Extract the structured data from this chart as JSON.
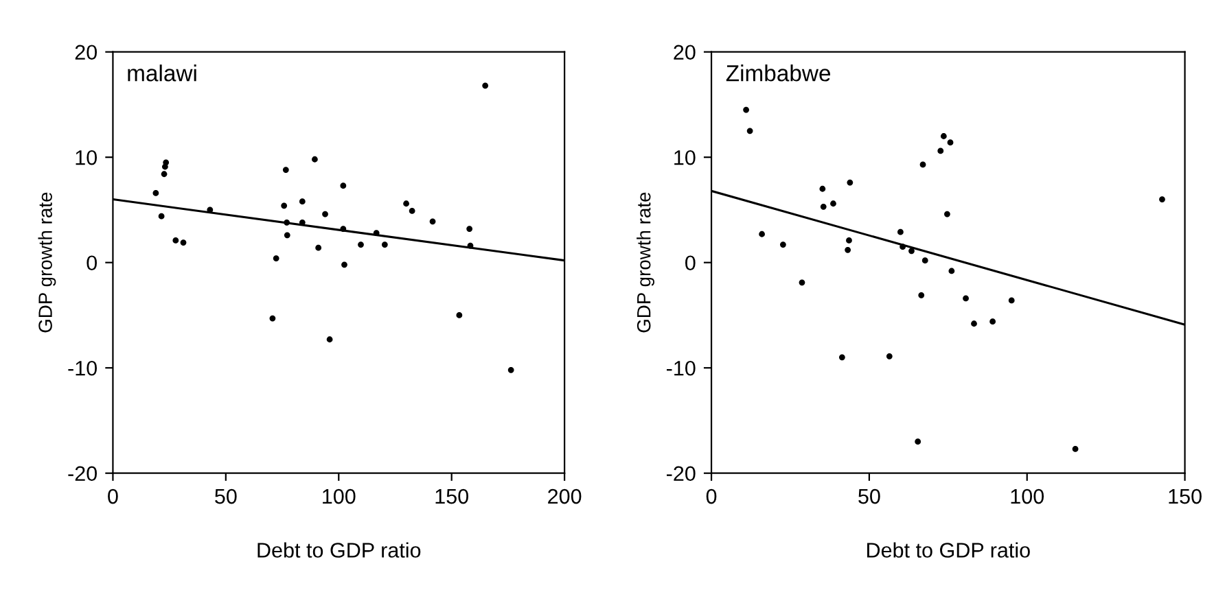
{
  "chart_data": [
    {
      "type": "scatter",
      "title": "malawi",
      "xlabel": "Debt to GDP ratio",
      "ylabel": "GDP growth rate",
      "xlim": [
        0,
        200
      ],
      "ylim": [
        -20,
        20
      ],
      "xticks": [
        0,
        50,
        100,
        150,
        200
      ],
      "yticks": [
        -20,
        -10,
        0,
        10,
        20
      ],
      "grid": false,
      "legend": false,
      "series": [
        {
          "color": "#000000",
          "marker": "circle",
          "x": [
            19,
            21.5,
            22.7,
            23.1,
            23.5,
            27.8,
            31.2,
            43,
            70.7,
            72.3,
            75.8,
            76.6,
            77,
            77.2,
            83.9,
            83.9,
            89.4,
            91,
            94,
            96,
            102,
            102,
            102.5,
            109.8,
            116.7,
            120.4,
            129.9,
            132.5,
            141.6,
            153.4,
            157.9,
            158.3,
            164.9,
            176.3
          ],
          "values": [
            6.6,
            4.4,
            8.4,
            9.1,
            9.5,
            2.1,
            1.9,
            5.0,
            -5.3,
            0.4,
            5.4,
            8.8,
            3.8,
            2.6,
            5.8,
            3.8,
            9.8,
            1.4,
            4.6,
            -7.3,
            7.3,
            3.2,
            -0.2,
            1.7,
            2.8,
            1.7,
            5.6,
            4.9,
            3.9,
            -5.0,
            3.2,
            1.6,
            16.8,
            -10.2
          ]
        },
        {
          "type": "line",
          "color": "#000000",
          "x": [
            0,
            200
          ],
          "values": [
            6.0,
            0.2
          ]
        }
      ]
    },
    {
      "type": "scatter",
      "title": "Zimbabwe",
      "xlabel": "Debt to GDP ratio",
      "ylabel": "GDP growth rate",
      "xlim": [
        0,
        150
      ],
      "ylim": [
        -20,
        20
      ],
      "xticks": [
        0,
        50,
        100,
        150
      ],
      "yticks": [
        -20,
        -10,
        0,
        10,
        20
      ],
      "grid": false,
      "legend": false,
      "series": [
        {
          "color": "#000000",
          "marker": "circle",
          "x": [
            11,
            12.2,
            16,
            22.7,
            28.7,
            35.2,
            35.5,
            38.6,
            41.4,
            43.2,
            43.6,
            43.9,
            56.4,
            59.9,
            60.6,
            63.4,
            65.4,
            66.5,
            67,
            67.7,
            72.6,
            73.6,
            74.7,
            75.7,
            76.1,
            80.6,
            83.2,
            89.1,
            95.1,
            115.3,
            142.8
          ],
          "values": [
            14.5,
            12.5,
            2.7,
            1.7,
            -1.9,
            7.0,
            5.3,
            5.6,
            -9.0,
            1.2,
            2.1,
            7.6,
            -8.9,
            2.9,
            1.5,
            1.1,
            -17.0,
            -3.1,
            9.3,
            0.2,
            10.6,
            12.0,
            4.6,
            11.4,
            -0.8,
            -3.4,
            -5.8,
            -5.6,
            -3.6,
            -17.7,
            6.0
          ]
        },
        {
          "type": "line",
          "color": "#000000",
          "x": [
            0,
            150
          ],
          "values": [
            6.8,
            -5.9
          ]
        }
      ]
    }
  ]
}
